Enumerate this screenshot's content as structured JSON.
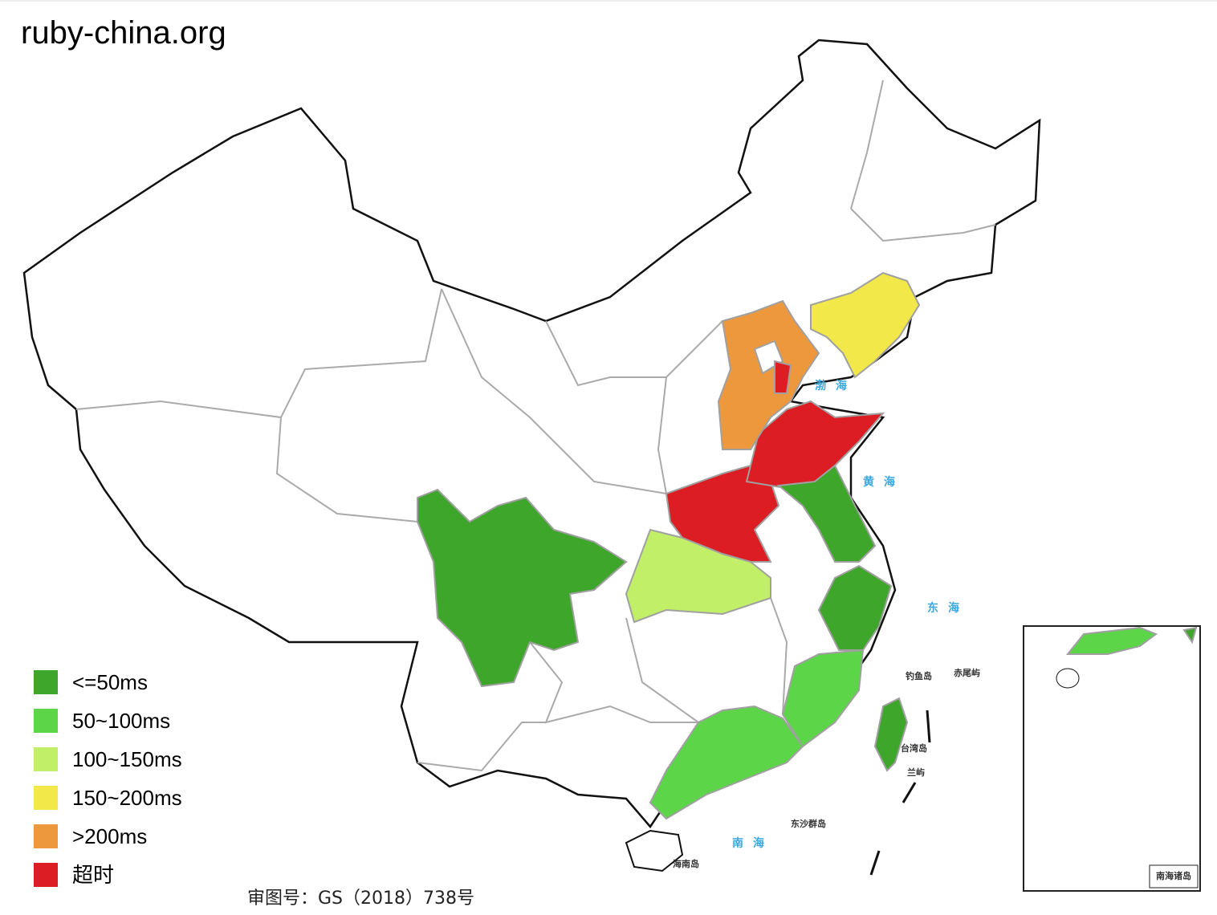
{
  "header": {
    "title": "ruby-china.org"
  },
  "legend": {
    "items": [
      {
        "label": "<=50ms",
        "color": "#3ea62a"
      },
      {
        "label": "50~100ms",
        "color": "#5cd648"
      },
      {
        "label": "100~150ms",
        "color": "#c2ef68"
      },
      {
        "label": "150~200ms",
        "color": "#f2e84a"
      },
      {
        "label": ">200ms",
        "color": "#ee983d"
      },
      {
        "label": "超时",
        "color": "#dc1d23"
      }
    ]
  },
  "map_labels": {
    "seas": [
      "渤海",
      "黄海",
      "东海",
      "南海"
    ],
    "islands": [
      "钓鱼岛",
      "赤尾屿",
      "台湾岛",
      "兰屿",
      "东沙群岛",
      "海南岛"
    ],
    "inset_title": "南海诸岛"
  },
  "footer": {
    "approval": "审图号：GS（2018）738号"
  }
}
